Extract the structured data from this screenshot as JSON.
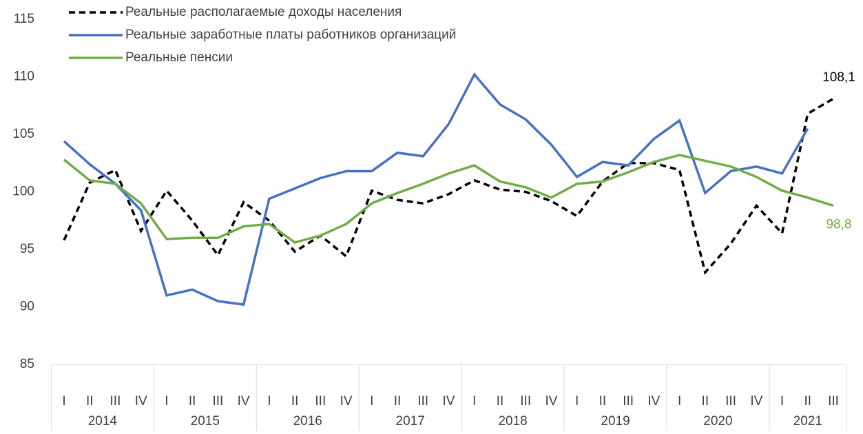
{
  "chart_data": {
    "type": "line",
    "categories": [
      "I",
      "II",
      "III",
      "IV",
      "I",
      "II",
      "III",
      "IV",
      "I",
      "II",
      "III",
      "IV",
      "I",
      "II",
      "III",
      "IV",
      "I",
      "II",
      "III",
      "IV",
      "I",
      "II",
      "III",
      "IV",
      "I",
      "II",
      "III",
      "IV",
      "I",
      "II",
      "III"
    ],
    "category_groups": [
      "2014",
      "2014",
      "2014",
      "2014",
      "2015",
      "2015",
      "2015",
      "2015",
      "2016",
      "2016",
      "2016",
      "2016",
      "2017",
      "2017",
      "2017",
      "2017",
      "2018",
      "2018",
      "2018",
      "2018",
      "2019",
      "2019",
      "2019",
      "2019",
      "2020",
      "2020",
      "2020",
      "2020",
      "2021",
      "2021",
      "2021"
    ],
    "series": [
      {
        "name": "Реальные располагаемые доходы населения",
        "color": "#000000",
        "dash": true,
        "values": [
          95.8,
          100.8,
          101.9,
          96.6,
          100.1,
          97.5,
          94.5,
          99.1,
          97.5,
          94.8,
          96.2,
          94.4,
          100.1,
          99.3,
          99.0,
          99.8,
          101.0,
          100.2,
          100.0,
          99.2,
          97.9,
          100.9,
          102.5,
          102.5,
          101.9,
          93.0,
          95.5,
          98.8,
          96.4,
          106.8,
          108.1
        ],
        "value_labels": [
          null,
          null,
          null,
          null,
          null,
          null,
          null,
          null,
          null,
          null,
          null,
          null,
          null,
          null,
          null,
          null,
          null,
          null,
          null,
          null,
          null,
          null,
          null,
          null,
          null,
          null,
          null,
          null,
          null,
          null,
          "108,1"
        ]
      },
      {
        "name": "Реальные заработные платы работников организаций",
        "color": "#4472c4",
        "dash": false,
        "values": [
          104.4,
          102.4,
          100.7,
          98.4,
          91.0,
          91.5,
          90.5,
          90.2,
          99.4,
          100.3,
          101.2,
          101.8,
          101.8,
          103.4,
          103.1,
          105.9,
          110.2,
          107.6,
          106.3,
          104.1,
          101.3,
          102.6,
          102.3,
          104.6,
          106.2,
          99.9,
          101.8,
          102.2,
          101.6,
          105.5,
          null
        ]
      },
      {
        "name": "Реальные пенсии",
        "color": "#70ad47",
        "dash": false,
        "values": [
          102.8,
          101.0,
          100.7,
          99.0,
          95.9,
          96.0,
          96.0,
          97.0,
          97.2,
          95.6,
          96.2,
          97.2,
          99.0,
          99.9,
          100.7,
          101.6,
          102.3,
          100.9,
          100.4,
          99.5,
          100.7,
          100.9,
          101.7,
          102.6,
          103.2,
          102.7,
          102.2,
          101.3,
          100.1,
          99.5,
          98.8
        ],
        "value_labels": [
          null,
          null,
          null,
          null,
          null,
          null,
          null,
          null,
          null,
          null,
          null,
          null,
          null,
          null,
          null,
          null,
          null,
          null,
          null,
          null,
          null,
          null,
          null,
          null,
          null,
          null,
          null,
          null,
          null,
          null,
          "98,8"
        ]
      }
    ],
    "ylim": [
      85,
      115
    ],
    "yticks": [
      85,
      90,
      95,
      100,
      105,
      110,
      115
    ],
    "grid": false,
    "legend": "top-left"
  }
}
